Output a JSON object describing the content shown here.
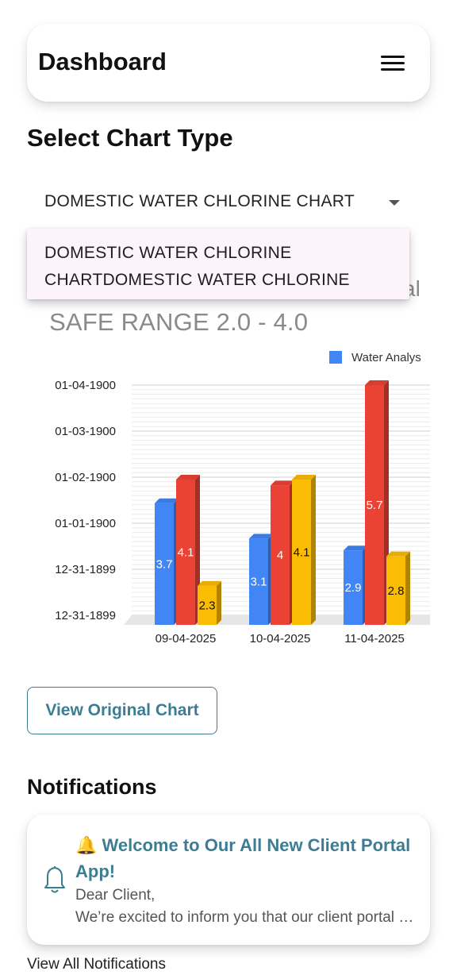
{
  "header": {
    "title": "Dashboard",
    "menu_icon": "hamburger-menu-icon"
  },
  "chart_selector": {
    "section_title": "Select Chart Type",
    "selected_value": "DOMESTIC WATER CHLORINE CHART",
    "popup_options": [
      "DOMESTIC WATER CHLORINE",
      "CHARTDOMESTIC WATER CHLORINE"
    ]
  },
  "chart_header": {
    "title_left": "",
    "title_right": "al",
    "subtitle": "SAFE RANGE 2.0 - 4.0"
  },
  "chart_data": {
    "type": "bar",
    "categories": [
      "09-04-2025",
      "10-04-2025",
      "11-04-2025"
    ],
    "series": [
      {
        "name": "Water Analysis",
        "color": "#4285f4",
        "values": [
          3.7,
          3.1,
          2.9
        ],
        "labels": [
          "3.7",
          "3.1",
          "2.9"
        ]
      },
      {
        "name": "",
        "color": "#ea4335",
        "values": [
          4.1,
          4.0,
          5.7
        ],
        "labels": [
          "4.1",
          "4",
          "5.7"
        ]
      },
      {
        "name": "",
        "color": "#fbbc04",
        "values": [
          2.3,
          4.1,
          2.8
        ],
        "labels": [
          "2.3",
          "4.1",
          "2.8"
        ]
      }
    ],
    "legend_text": "Water Analys",
    "y_tick_labels": [
      "01-04-1900",
      "01-03-1900",
      "01-02-1900",
      "01-01-1900",
      "12-31-1899",
      "12-31-1899"
    ],
    "ylim": [
      1.8,
      5.7
    ],
    "grid": true,
    "legend_position": "top-right"
  },
  "actions": {
    "view_original_chart": "View Original Chart"
  },
  "notifications": {
    "section_title": "Notifications",
    "items": [
      {
        "icon": "bell-emoji-icon",
        "bell_emoji": "🔔",
        "title": "Welcome to Our All New Client Portal App!",
        "body_line1": "Dear Client,",
        "body_line2": "We’re excited to inform you that our client portal has been upgraded"
      }
    ],
    "view_all": "View All Notifications"
  }
}
